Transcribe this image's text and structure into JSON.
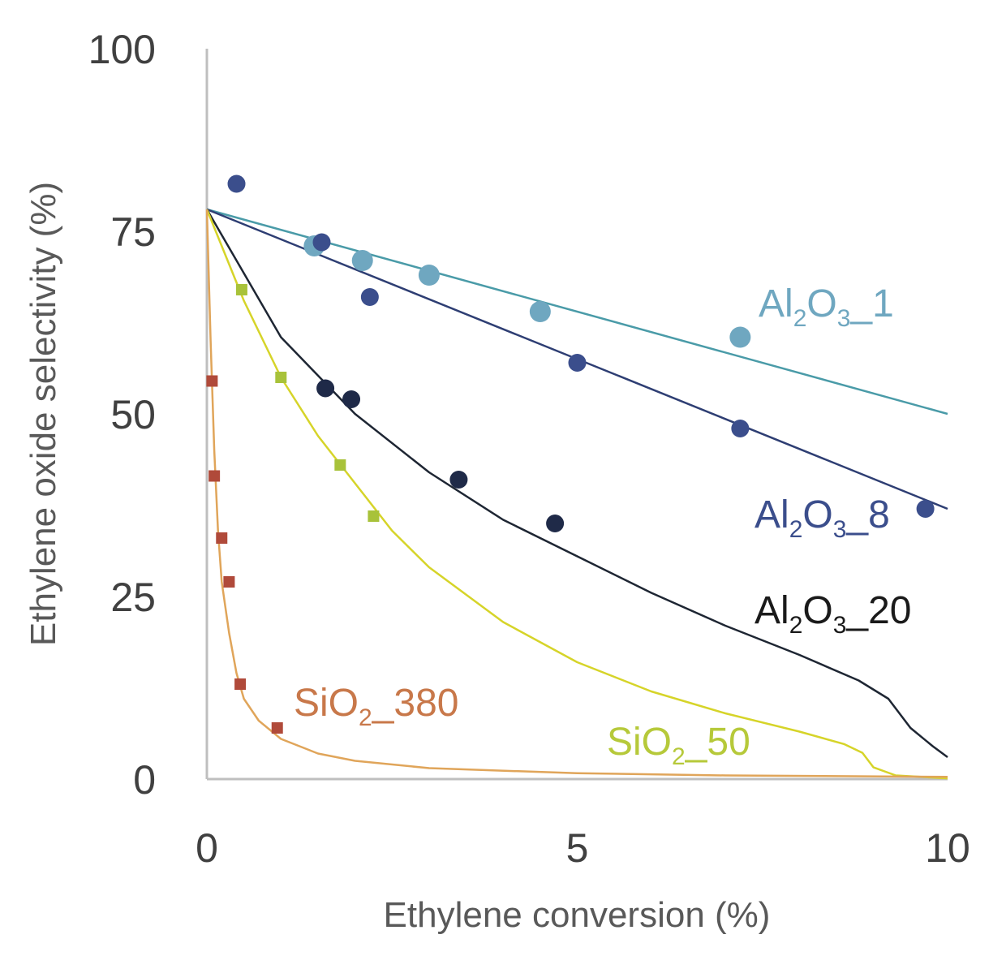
{
  "chart_data": {
    "type": "scatter",
    "xlabel": "Ethylene conversion (%)",
    "ylabel": "Ethylene oxide selectivity (%)",
    "xlim": [
      0,
      10
    ],
    "ylim": [
      0,
      100
    ],
    "xticks": [
      "0",
      "5",
      "10"
    ],
    "yticks": [
      "0",
      "25",
      "50",
      "75",
      "100"
    ],
    "grid": false,
    "legend": "inline labels next to curves",
    "series": [
      {
        "name": "Al2O3_1",
        "label": {
          "pre": "Al",
          "s1": "2",
          "mid": "O",
          "s2": "3",
          "post": "_1"
        },
        "color": "#6FA7C0",
        "line_color": "#4A9BA8",
        "marker": "circle",
        "points": [
          [
            1.45,
            73
          ],
          [
            2.1,
            71
          ],
          [
            3.0,
            69
          ],
          [
            4.5,
            64
          ],
          [
            7.2,
            60.5
          ]
        ],
        "fit": [
          [
            0,
            78
          ],
          [
            10,
            50
          ]
        ]
      },
      {
        "name": "Al2O3_8",
        "label": {
          "pre": "Al",
          "s1": "2",
          "mid": "O",
          "s2": "3",
          "post": "_8"
        },
        "color": "#3B4E8C",
        "line_color": "#2E3E73",
        "marker": "circle",
        "points": [
          [
            0.4,
            81.5
          ],
          [
            1.55,
            73.5
          ],
          [
            2.2,
            66
          ],
          [
            5.0,
            57
          ],
          [
            7.2,
            48
          ],
          [
            9.7,
            37
          ]
        ],
        "fit": [
          [
            0,
            78
          ],
          [
            10,
            37
          ]
        ]
      },
      {
        "name": "Al2O3_20",
        "label": {
          "pre": "Al",
          "s1": "2",
          "mid": "O",
          "s2": "3",
          "post": "_20"
        },
        "color": "#1F2A48",
        "line_color": "#1E2633",
        "marker": "circle",
        "points": [
          [
            1.6,
            53.5
          ],
          [
            1.95,
            52
          ],
          [
            3.4,
            41
          ],
          [
            4.7,
            35
          ]
        ],
        "fit": [
          [
            0,
            78
          ],
          [
            1,
            60.5
          ],
          [
            2,
            50
          ],
          [
            3,
            42
          ],
          [
            4,
            35.5
          ],
          [
            5,
            30.5
          ],
          [
            6,
            25.5
          ],
          [
            7,
            21
          ],
          [
            8,
            17
          ],
          [
            8.8,
            13.5
          ],
          [
            9.2,
            11
          ],
          [
            9.5,
            7
          ],
          [
            9.8,
            4.5
          ],
          [
            10,
            3
          ]
        ]
      },
      {
        "name": "SiO2_50",
        "label": {
          "pre": "SiO",
          "s1": "2",
          "mid": "",
          "s2": "",
          "post": "_50"
        },
        "color": "#A8C23A",
        "line_color": "#D6D429",
        "marker": "square",
        "points": [
          [
            0.47,
            67
          ],
          [
            1.0,
            55
          ],
          [
            1.8,
            43
          ],
          [
            2.25,
            36
          ]
        ],
        "fit": [
          [
            0,
            78
          ],
          [
            0.5,
            65.5
          ],
          [
            1,
            55
          ],
          [
            1.5,
            47
          ],
          [
            2,
            40.5
          ],
          [
            2.5,
            34
          ],
          [
            3,
            29
          ],
          [
            4,
            21.5
          ],
          [
            5,
            16
          ],
          [
            6,
            12
          ],
          [
            7,
            9
          ],
          [
            8,
            6.5
          ],
          [
            8.6,
            4.8
          ],
          [
            8.85,
            3.6
          ],
          [
            9.0,
            1.6
          ],
          [
            9.3,
            0.5
          ],
          [
            10,
            0.1
          ]
        ]
      },
      {
        "name": "SiO2_380",
        "label": {
          "pre": "SiO",
          "s1": "2",
          "mid": "",
          "s2": "",
          "post": "_380"
        },
        "color": "#B04A3A",
        "line_color": "#E0A55A",
        "marker": "square",
        "points": [
          [
            0.07,
            54.5
          ],
          [
            0.1,
            41.5
          ],
          [
            0.2,
            33
          ],
          [
            0.3,
            27
          ],
          [
            0.45,
            13
          ],
          [
            0.95,
            7
          ]
        ],
        "fit": [
          [
            0,
            78
          ],
          [
            0.05,
            60
          ],
          [
            0.1,
            45
          ],
          [
            0.15,
            34
          ],
          [
            0.2,
            27
          ],
          [
            0.3,
            20
          ],
          [
            0.4,
            14.5
          ],
          [
            0.5,
            11
          ],
          [
            0.7,
            8
          ],
          [
            1,
            5.5
          ],
          [
            1.5,
            3.5
          ],
          [
            2,
            2.5
          ],
          [
            3,
            1.5
          ],
          [
            5,
            0.8
          ],
          [
            7,
            0.5
          ],
          [
            10,
            0.3
          ]
        ]
      }
    ]
  }
}
